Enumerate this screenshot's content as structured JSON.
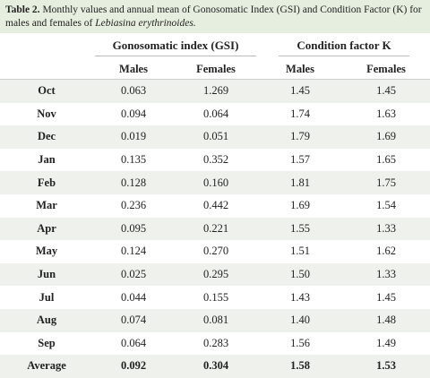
{
  "caption": {
    "label": "Table 2.",
    "text": "Monthly values and annual mean of Gonosomatic Index (GSI) and Condition Factor (K) for males and females of",
    "species": "Lebiasina erythrinoides."
  },
  "table": {
    "groups": [
      "Gonosomatic index (GSI)",
      "Condition factor K"
    ],
    "subheaders": [
      "Males",
      "Females",
      "Males",
      "Females"
    ],
    "rows": [
      [
        "Oct",
        "0.063",
        "1.269",
        "1.45",
        "1.45"
      ],
      [
        "Nov",
        "0.094",
        "0.064",
        "1.74",
        "1.63"
      ],
      [
        "Dec",
        "0.019",
        "0.051",
        "1.79",
        "1.69"
      ],
      [
        "Jan",
        "0.135",
        "0.352",
        "1.57",
        "1.65"
      ],
      [
        "Feb",
        "0.128",
        "0.160",
        "1.81",
        "1.75"
      ],
      [
        "Mar",
        "0.236",
        "0.442",
        "1.69",
        "1.54"
      ],
      [
        "Apr",
        "0.095",
        "0.221",
        "1.55",
        "1.33"
      ],
      [
        "May",
        "0.124",
        "0.270",
        "1.51",
        "1.62"
      ],
      [
        "Jun",
        "0.025",
        "0.295",
        "1.50",
        "1.33"
      ],
      [
        "Jul",
        "0.044",
        "0.155",
        "1.43",
        "1.45"
      ],
      [
        "Aug",
        "0.074",
        "0.081",
        "1.40",
        "1.48"
      ],
      [
        "Sep",
        "0.064",
        "0.283",
        "1.56",
        "1.49"
      ],
      [
        "Average",
        "0.092",
        "0.304",
        "1.58",
        "1.53"
      ]
    ]
  }
}
